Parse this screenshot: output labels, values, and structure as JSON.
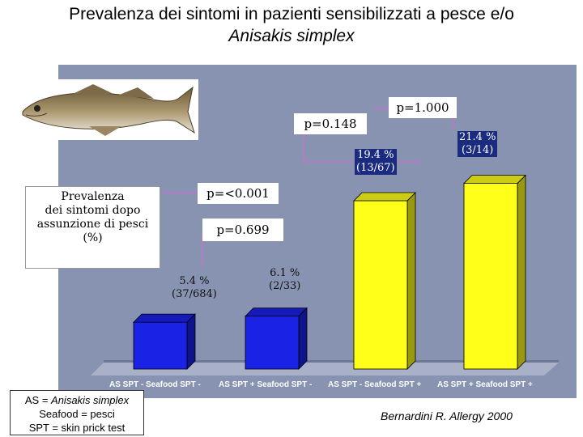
{
  "title": {
    "line1": "Prevalenza dei sintomi in pazienti sensibilizzati a pesce e/o",
    "line2": "Anisakis simplex"
  },
  "legend_box": {
    "line1": "Prevalenza",
    "line2": "dei sintomi dopo",
    "line3": "assunzione di  pesci",
    "line4": "(%)"
  },
  "pvalues": {
    "p1": "p=0.148",
    "p2": "p=1.000",
    "p3": "p=<0.001",
    "p4": "p=0.699"
  },
  "abbreviations": {
    "as_prefix": "AS = ",
    "as_name": "Anisakis simplex",
    "seafood": "Seafood = pesci",
    "spt": "SPT = skin prick test"
  },
  "citation": "Bernardini R. Allergy 2000",
  "colors": {
    "panel": "#8793b0",
    "blue_bar": "#1a22e6",
    "yellow_bar": "#ffff1a",
    "bracket": "#d36ad3"
  },
  "chart_data": {
    "type": "bar",
    "categories": [
      "AS SPT -   Seafood SPT -",
      "AS SPT +  Seafood SPT -",
      "AS SPT -   Seafood SPT +",
      "AS SPT +  Seafood SPT +"
    ],
    "values": [
      5.4,
      6.1,
      19.4,
      21.4
    ],
    "value_labels": [
      [
        "5.4 %",
        "(37/684)"
      ],
      [
        "6.1 %",
        "(2/33)"
      ],
      [
        "19.4 %",
        "(13/67)"
      ],
      [
        "21.4 %",
        "(3/14)"
      ]
    ],
    "bar_colors": [
      "#1a22e6",
      "#1a22e6",
      "#ffff1a",
      "#ffff1a"
    ],
    "ylim": [
      0,
      25
    ],
    "grid": false
  }
}
